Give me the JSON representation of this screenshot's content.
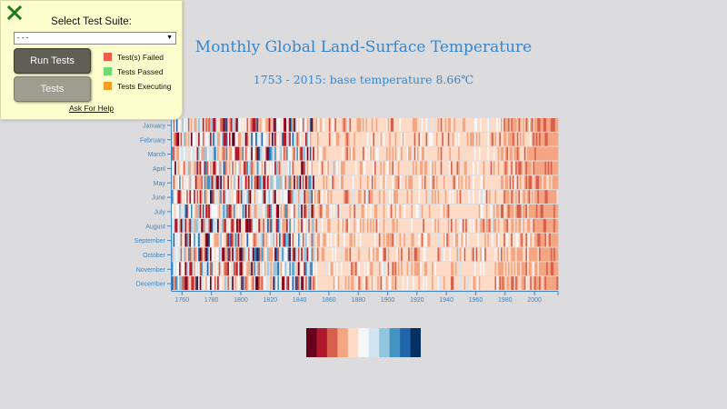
{
  "chart_data": {
    "type": "heatmap",
    "title": "Monthly Global Land-Surface Temperature",
    "subtitle": "1753 - 2015: base temperature 8.66℃",
    "base_temperature": 8.66,
    "x_range": [
      1753,
      2015
    ],
    "x_ticks": [
      "1760",
      "1780",
      "1800",
      "1820",
      "1840",
      "1860",
      "1880",
      "1900",
      "1920",
      "1940",
      "1960",
      "1980",
      "2000"
    ],
    "months": [
      "January",
      "February",
      "March",
      "April",
      "May",
      "June",
      "July",
      "August",
      "September",
      "October",
      "November",
      "December"
    ],
    "color_scale": [
      "#67001f",
      "#b2182b",
      "#d6604d",
      "#f4a582",
      "#fddbc7",
      "#f7f7f7",
      "#d1e5f0",
      "#92c5de",
      "#4393c3",
      "#2166ac",
      "#053061"
    ],
    "color_scale_direction": "warm (left) to cold (right)",
    "pattern": "highly variable warm and cold anomalies before ~1850, mostly mild warm afterwards, strongly warm after ~1980"
  },
  "test_panel": {
    "close_icon_color": "#1b7a1b",
    "suite_label": "Select Test Suite:",
    "suite_selected": "- - -",
    "run_button": "Run Tests",
    "tests_button": "Tests",
    "status": [
      {
        "label": "Test(s) Failed",
        "color": "#ef5c4a"
      },
      {
        "label": "Tests Passed",
        "color": "#6fdc6f"
      },
      {
        "label": "Tests Executing",
        "color": "#f2a023"
      }
    ],
    "help_link": "Ask For Help"
  }
}
